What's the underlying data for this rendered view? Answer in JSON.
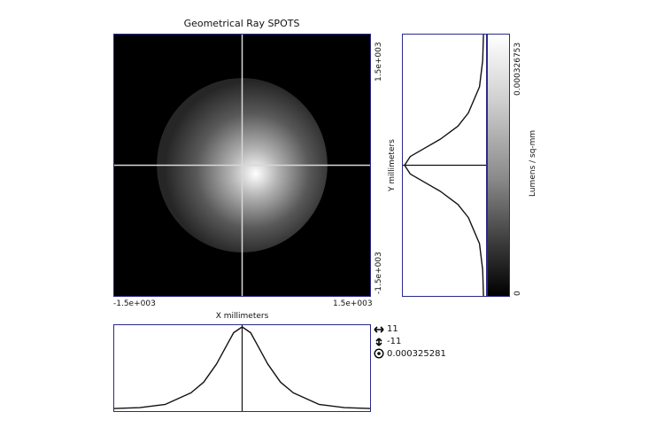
{
  "chart_data": {
    "type": "heatmap",
    "title": "Geometrical Ray SPOTS",
    "xlabel": "X millimeters",
    "ylabel": "Y millimeters",
    "xlim": [
      -1500,
      1500
    ],
    "ylim": [
      -1500,
      1500
    ],
    "x_tick_labels": [
      "-1.5e+003",
      "1.5e+003"
    ],
    "y_tick_labels": [
      "1.5e+003",
      "-1.5e+003"
    ],
    "colorbar": {
      "label": "Lumens / sq-mm",
      "max_label": "0.000326753",
      "min_label": "0",
      "range": [
        0,
        0.000326753
      ],
      "colormap": "grayscale"
    },
    "spot": {
      "center": [
        0,
        0
      ],
      "spot_radius_mm": 1000,
      "edge_level_fraction": 0.15,
      "peak": 0.000326753
    },
    "x_profile": {
      "x": [
        -1500,
        -1200,
        -900,
        -600,
        -450,
        -300,
        -200,
        -100,
        0,
        100,
        200,
        300,
        450,
        600,
        900,
        1200,
        1500
      ],
      "relative_intensity": [
        0.01,
        0.02,
        0.06,
        0.2,
        0.33,
        0.55,
        0.74,
        0.93,
        1.0,
        0.93,
        0.74,
        0.55,
        0.33,
        0.2,
        0.06,
        0.02,
        0.01
      ]
    },
    "y_profile": {
      "y": [
        1500,
        1200,
        900,
        600,
        450,
        300,
        200,
        100,
        0,
        -100,
        -200,
        -300,
        -450,
        -600,
        -900,
        -1200,
        -1500
      ],
      "relative_intensity": [
        0.01,
        0.02,
        0.06,
        0.2,
        0.33,
        0.55,
        0.74,
        0.93,
        1.0,
        0.93,
        0.74,
        0.55,
        0.33,
        0.2,
        0.06,
        0.02,
        0.01
      ]
    },
    "crosshair": [
      0,
      0
    ],
    "readout": {
      "x_value": "11",
      "y_value": "-11",
      "value": "0.000325281"
    },
    "grid": false
  }
}
